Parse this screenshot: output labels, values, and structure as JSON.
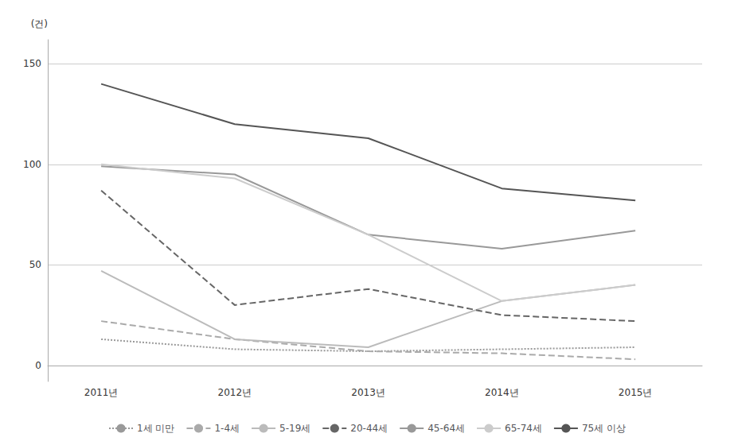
{
  "chart_data": {
    "type": "line",
    "ylabel": "(건)",
    "x": [
      2011,
      2012,
      2013,
      2014,
      2015
    ],
    "xlim": [
      2010.6,
      2015.5
    ],
    "xticks": [
      {
        "value": 2011,
        "label": "2011년"
      },
      {
        "value": 2012,
        "label": "2012년"
      },
      {
        "value": 2013,
        "label": "2013년"
      },
      {
        "value": 2014,
        "label": "2014년"
      },
      {
        "value": 2015,
        "label": "2015년"
      }
    ],
    "ylim": [
      -8,
      162
    ],
    "yticks": [
      0,
      50,
      100,
      150
    ],
    "grid": true,
    "legend": "bottom",
    "series": [
      {
        "name": "1세 미만",
        "color": "#999999",
        "line_style": "dotted",
        "values": [
          13,
          8,
          7,
          8,
          9
        ]
      },
      {
        "name": "1-4세",
        "color": "#aaaaaa",
        "line_style": "dashed",
        "values": [
          22,
          13,
          7,
          6,
          3
        ]
      },
      {
        "name": "5-19세",
        "color": "#bbbbbb",
        "line_style": "solid",
        "values": [
          47,
          13,
          9,
          32,
          40
        ]
      },
      {
        "name": "20-44세",
        "color": "#666666",
        "line_style": "dashed",
        "values": [
          87,
          30,
          38,
          25,
          22
        ]
      },
      {
        "name": "45-64세",
        "color": "#999999",
        "line_style": "solid",
        "values": [
          99,
          95,
          65,
          58,
          67
        ]
      },
      {
        "name": "65-74세",
        "color": "#cccccc",
        "line_style": "solid",
        "values": [
          100,
          93,
          65,
          32,
          40
        ]
      },
      {
        "name": "75세 이상",
        "color": "#555555",
        "line_style": "solid",
        "values": [
          140,
          120,
          113,
          88,
          82
        ]
      }
    ]
  }
}
